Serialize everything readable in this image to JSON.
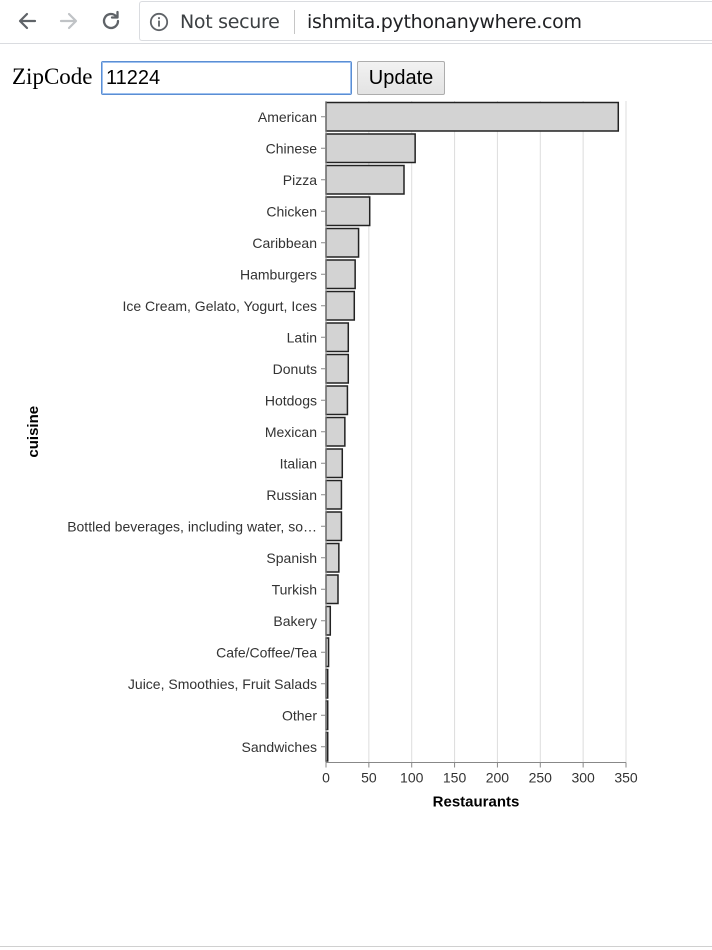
{
  "browser": {
    "security_label": "Not secure",
    "url": "ishmita.pythonanywhere.com",
    "icons": [
      "back-arrow-icon",
      "forward-arrow-icon",
      "reload-icon",
      "info-icon"
    ]
  },
  "form": {
    "label": "ZipCode",
    "zip_value": "11224",
    "button_label": "Update"
  },
  "chart_data": {
    "type": "bar",
    "orientation": "horizontal",
    "categories": [
      "American",
      "Chinese",
      "Pizza",
      "Chicken",
      "Caribbean",
      "Hamburgers",
      "Ice Cream, Gelato, Yogurt, Ices",
      "Latin",
      "Donuts",
      "Hotdogs",
      "Mexican",
      "Italian",
      "Russian",
      "Bottled beverages, including water, so…",
      "Spanish",
      "Turkish",
      "Bakery",
      "Cafe/Coffee/Tea",
      "Juice, Smoothies, Fruit Salads",
      "Other",
      "Sandwiches"
    ],
    "values": [
      341,
      104,
      91,
      51,
      38,
      34,
      33,
      26,
      26,
      25,
      22,
      19,
      18,
      18,
      15,
      14,
      5,
      3,
      2,
      2,
      2
    ],
    "xlabel": "Restaurants",
    "ylabel": "cuisine",
    "xlim": [
      0,
      350
    ],
    "xticks": [
      0,
      50,
      100,
      150,
      200,
      250,
      300,
      350
    ],
    "grid": true,
    "bar_color": "#d3d3d3",
    "bar_stroke": "#222222"
  }
}
